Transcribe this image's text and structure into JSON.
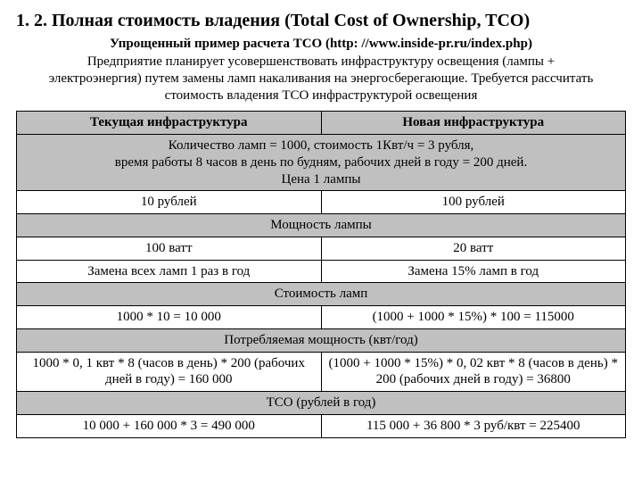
{
  "title": "1. 2. Полная стоимость владения (Total Cost of Ownership, TCO)",
  "subtitle": "Упрощенный пример расчета ТСО (http: //www.inside-pr.ru/index.php)",
  "intro": "Предприятие планирует усовершенствовать инфраструктуру освещения (лампы + электроэнергия) путем замены ламп накаливания на энергосберегающие. Требуется рассчитать стоимость владения ТСО инфраструктурой освещения",
  "table": {
    "col_headers": [
      "Текущая инфраструктура",
      "Новая инфраструктура"
    ],
    "rows": [
      {
        "type": "band",
        "span": true,
        "text": "Количество ламп = 1000, стоимость 1Квт/ч = 3 рубля,\nвремя работы 8 часов в день по будням, рабочих дней в году = 200 дней.\nЦена 1 лампы"
      },
      {
        "type": "white",
        "left": "10 рублей",
        "right": "100 рублей"
      },
      {
        "type": "band",
        "span": true,
        "text": "Мощность лампы"
      },
      {
        "type": "white",
        "left": "100 ватт",
        "right": "20 ватт"
      },
      {
        "type": "white",
        "left": "Замена всех ламп 1 раз в год",
        "right": "Замена 15% ламп в год"
      },
      {
        "type": "band",
        "span": true,
        "text": "Стоимость ламп"
      },
      {
        "type": "white",
        "left": "1000 * 10 = 10 000",
        "right": "(1000 + 1000 * 15%) * 100 = 115000"
      },
      {
        "type": "band",
        "span": true,
        "text": "Потребляемая мощность (квт/год)"
      },
      {
        "type": "white",
        "left": "1000 * 0, 1 квт * 8 (часов в день) * 200 (рабочих дней в году) = 160 000",
        "right": "(1000 + 1000 * 15%) * 0, 02 квт * 8 (часов в день) * 200 (рабочих дней в году) = 36800"
      },
      {
        "type": "band",
        "span": true,
        "text": "ТСО (рублей в год)"
      },
      {
        "type": "white",
        "left": "10 000 + 160 000 * 3 = 490 000",
        "right": "115 000 + 36 800 * 3 руб/квт = 225400"
      }
    ]
  },
  "style": {
    "band_bg": "#c0c0c0",
    "white_bg": "#ffffff",
    "border_color": "#000000",
    "font_family": "Times New Roman",
    "title_fontsize": 20,
    "body_fontsize": 15
  }
}
